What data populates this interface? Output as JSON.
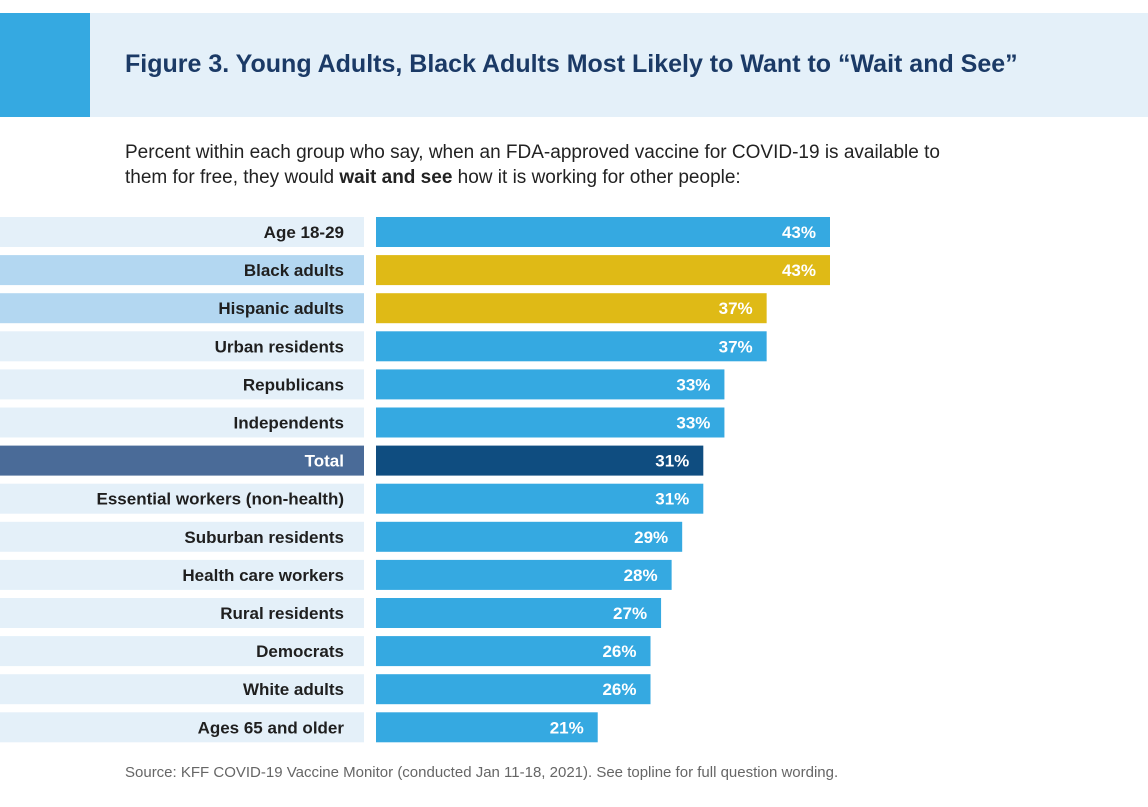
{
  "header": {
    "title": "Figure 3. Young Adults, Black Adults Most Likely to Want to “Wait and See”"
  },
  "subtitle": {
    "pre": "Percent within each group who say, when an FDA-approved vaccine for COVID-19 is available to them for free, they would ",
    "bold": "wait and see",
    "post": " how it is working for other people:"
  },
  "source": "Source: KFF COVID-19 Vaccine Monitor (conducted Jan 11-18, 2021). See topline for full question wording.",
  "colors": {
    "default_bar": "#35a9e1",
    "highlight_bar": "#dfba16",
    "total_bar": "#0f4d80",
    "label_bg_default": "#e4f0f9",
    "label_bg_highlight": "#b3d7f1",
    "label_bg_total": "#4a6b98"
  },
  "chart_data": {
    "type": "bar",
    "orientation": "horizontal",
    "title": "Figure 3. Young Adults, Black Adults Most Likely to Want to “Wait and See”",
    "xlabel": "",
    "ylabel": "",
    "xlim": [
      0,
      50
    ],
    "unit": "%",
    "categories": [
      "Age 18-29",
      "Black adults",
      "Hispanic adults",
      "Urban residents",
      "Republicans",
      "Independents",
      "Total",
      "Essential workers (non-health)",
      "Suburban residents",
      "Health care workers",
      "Rural residents",
      "Democrats",
      "White adults",
      "Ages 65 and older"
    ],
    "values": [
      43,
      43,
      37,
      37,
      33,
      33,
      31,
      31,
      29,
      28,
      27,
      26,
      26,
      21
    ],
    "labels": [
      "43%",
      "43%",
      "37%",
      "37%",
      "33%",
      "33%",
      "31%",
      "31%",
      "29%",
      "28%",
      "27%",
      "26%",
      "26%",
      "21%"
    ],
    "styles": [
      "default",
      "highlight",
      "highlight",
      "default",
      "default",
      "default",
      "total",
      "default",
      "default",
      "default",
      "default",
      "default",
      "default",
      "default"
    ]
  }
}
